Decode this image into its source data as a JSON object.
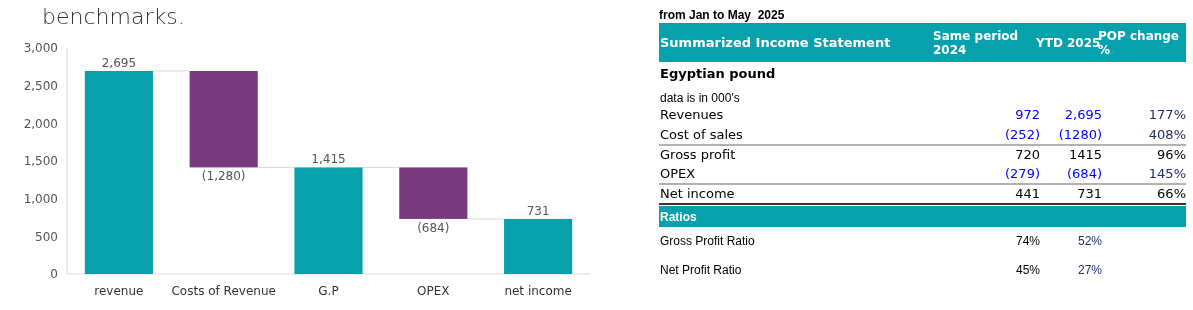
{
  "chart_data": [
    {
      "type": "bar",
      "title": "benchmarks.",
      "categories": [
        "revenue",
        "Costs of Revenue",
        "G.P",
        "OPEX",
        "net income"
      ],
      "values": [
        2695,
        -1280,
        1415,
        -684,
        731
      ],
      "base": [
        0,
        2695,
        0,
        1415,
        0
      ],
      "colors": [
        "#07a0ad",
        "#773a7e",
        "#07a0ad",
        "#773a7e",
        "#07a0ad"
      ],
      "value_labels": [
        "2,695",
        "(1,280)",
        "1,415",
        "(684)",
        "731"
      ],
      "ylim": [
        0,
        3000
      ],
      "yticks": [
        0,
        500,
        {
          "value": 1000,
          "label": "1,000"
        },
        {
          "value": 1500,
          "label": "1,500"
        },
        {
          "value": 2000,
          "label": "2,000"
        },
        {
          "value": 2500,
          "label": "2,500"
        },
        {
          "value": 3000,
          "label": "3,000"
        }
      ],
      "grid": false
    },
    {
      "type": "other",
      "title": "from Jan to May  2025",
      "subtitle": "Summarized Income Statement",
      "categories": [
        "Revenues",
        "Cost of sales",
        "Gross profit",
        "OPEX",
        "Net income",
        "Gross Profit Ratio",
        "Net Profit Ratio"
      ],
      "series": [
        {
          "name": "Same period 2024",
          "values": [
            972,
            -252,
            720,
            -279,
            441,
            74,
            45
          ],
          "value_labels": [
            "972",
            "(252)",
            "720",
            "(279)",
            "441",
            "74%",
            "45%"
          ],
          "colors": [
            "#0000ff",
            "#0000ff",
            "#000000",
            "#0000ff",
            "#000000",
            "#000000",
            "#000000"
          ]
        },
        {
          "name": "YTD 2025",
          "values": [
            2695,
            -1280,
            1415,
            -684,
            731,
            52,
            27
          ],
          "value_labels": [
            "2,695",
            "(1280)",
            "1415",
            "(684)",
            "731",
            "52%",
            "27%"
          ],
          "colors": [
            "#0000ff",
            "#0000ff",
            "#000000",
            "#0000ff",
            "#000000",
            "#1f2d6b",
            "#1f2d6b"
          ]
        },
        {
          "name": "POP change %",
          "values": [
            177,
            408,
            96,
            145,
            66,
            null,
            null
          ],
          "value_labels": [
            "177%",
            "408%",
            "96%",
            "145%",
            "66%",
            null,
            null
          ],
          "colors": [
            "#1f2d6b",
            "#1f2d6b",
            "#000000",
            "#1f2d6b",
            "#000000",
            null,
            null
          ]
        }
      ],
      "annotations": [
        "Egyptian pound",
        "data is in 000's",
        "Ratios"
      ]
    }
  ]
}
